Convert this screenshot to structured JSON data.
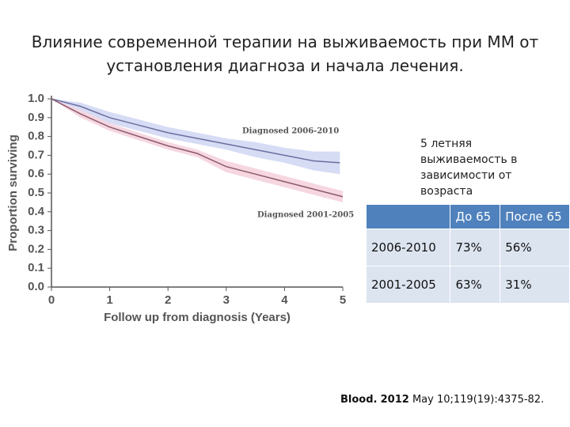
{
  "title": "Влияние современной терапии на выживаемость при ММ от установления диагноза и начала лечения.",
  "chart_data": {
    "type": "line",
    "xlabel": "Follow up from diagnosis (Years)",
    "ylabel": "Proportion surviving",
    "xlim": [
      0,
      5
    ],
    "xticks": [
      0,
      1,
      2,
      3,
      4,
      5
    ],
    "ylim": [
      0,
      1
    ],
    "yticks": [
      {
        "value": 0,
        "label": "0.0"
      },
      0.1,
      0.2,
      0.3,
      0.4,
      0.5,
      0.6,
      0.7,
      0.8,
      0.9,
      {
        "value": 1,
        "label": "1.0"
      }
    ],
    "grid": false,
    "series": [
      {
        "name": "Diagnosed 2006-2010",
        "color": "#6b6f9f",
        "band_color": "#c9d0f2",
        "x": [
          0,
          0.5,
          1,
          1.5,
          2,
          2.5,
          3,
          3.5,
          4,
          4.5,
          4.95
        ],
        "values": [
          1.0,
          0.96,
          0.9,
          0.86,
          0.82,
          0.79,
          0.76,
          0.73,
          0.7,
          0.67,
          0.66
        ],
        "upper": [
          1.0,
          0.98,
          0.93,
          0.89,
          0.85,
          0.82,
          0.79,
          0.77,
          0.74,
          0.72,
          0.72
        ],
        "lower": [
          1.0,
          0.94,
          0.87,
          0.83,
          0.79,
          0.76,
          0.73,
          0.69,
          0.66,
          0.62,
          0.6
        ]
      },
      {
        "name": "Diagnosed 2001-2005",
        "color": "#8c5a6e",
        "band_color": "#f3c9d5",
        "x": [
          0,
          0.5,
          1,
          1.5,
          2,
          2.5,
          3,
          3.5,
          4,
          4.5,
          5
        ],
        "values": [
          1.0,
          0.92,
          0.85,
          0.8,
          0.75,
          0.71,
          0.64,
          0.6,
          0.56,
          0.52,
          0.48
        ],
        "upper": [
          1.0,
          0.94,
          0.87,
          0.82,
          0.77,
          0.73,
          0.67,
          0.63,
          0.59,
          0.55,
          0.51
        ],
        "lower": [
          1.0,
          0.9,
          0.83,
          0.78,
          0.73,
          0.69,
          0.61,
          0.57,
          0.53,
          0.49,
          0.45
        ]
      }
    ]
  },
  "table": {
    "caption": "5 летняя выживаемость в зависимости от возраста",
    "header": [
      "До 65",
      "После 65"
    ],
    "rows": [
      [
        "2006-2010",
        "73%",
        "56%"
      ],
      [
        "2001-2005",
        "63%",
        "31%"
      ]
    ]
  },
  "citation": {
    "journal": "Blood.",
    "year": "2012",
    "rest": "May 10;119(19):4375-82."
  }
}
